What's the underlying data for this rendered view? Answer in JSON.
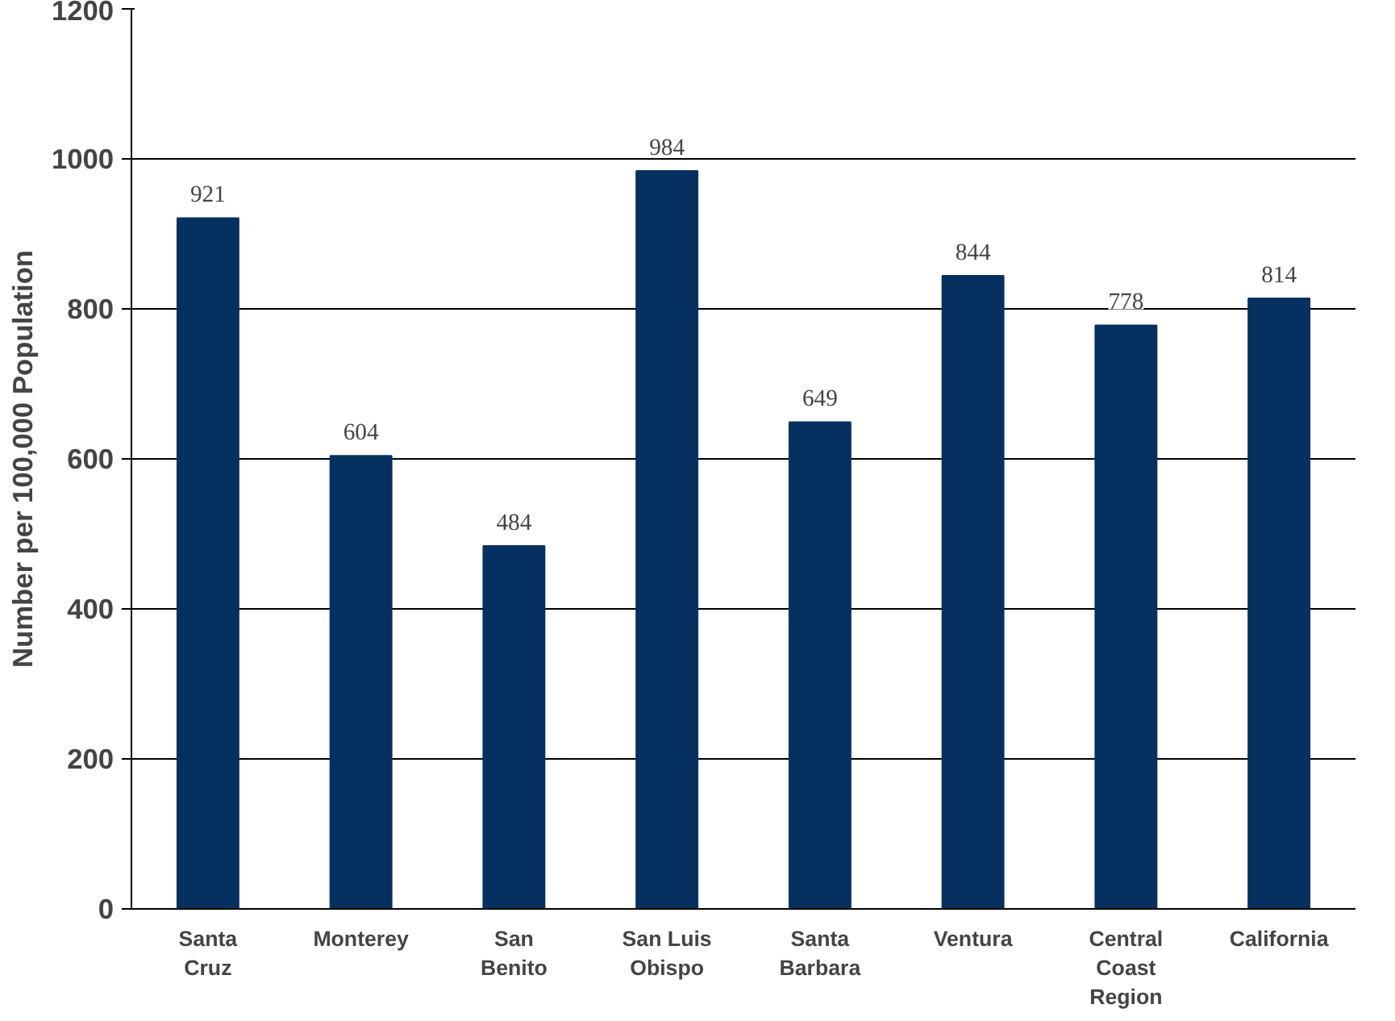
{
  "chart_data": {
    "type": "bar",
    "ylabel": "Number per 100,000 Population",
    "categories": [
      "Santa Cruz",
      "Monterey",
      "San Benito",
      "San Luis Obispo",
      "Santa Barbara",
      "Ventura",
      "Central Coast Region",
      "California"
    ],
    "values": [
      921,
      604,
      484,
      984,
      649,
      844,
      778,
      814
    ],
    "color": "#06305f",
    "ylim": [
      0,
      1200
    ],
    "yticks": [
      0,
      200,
      400,
      600,
      800,
      1000,
      1200
    ],
    "grid": "y",
    "data_labels": true
  }
}
